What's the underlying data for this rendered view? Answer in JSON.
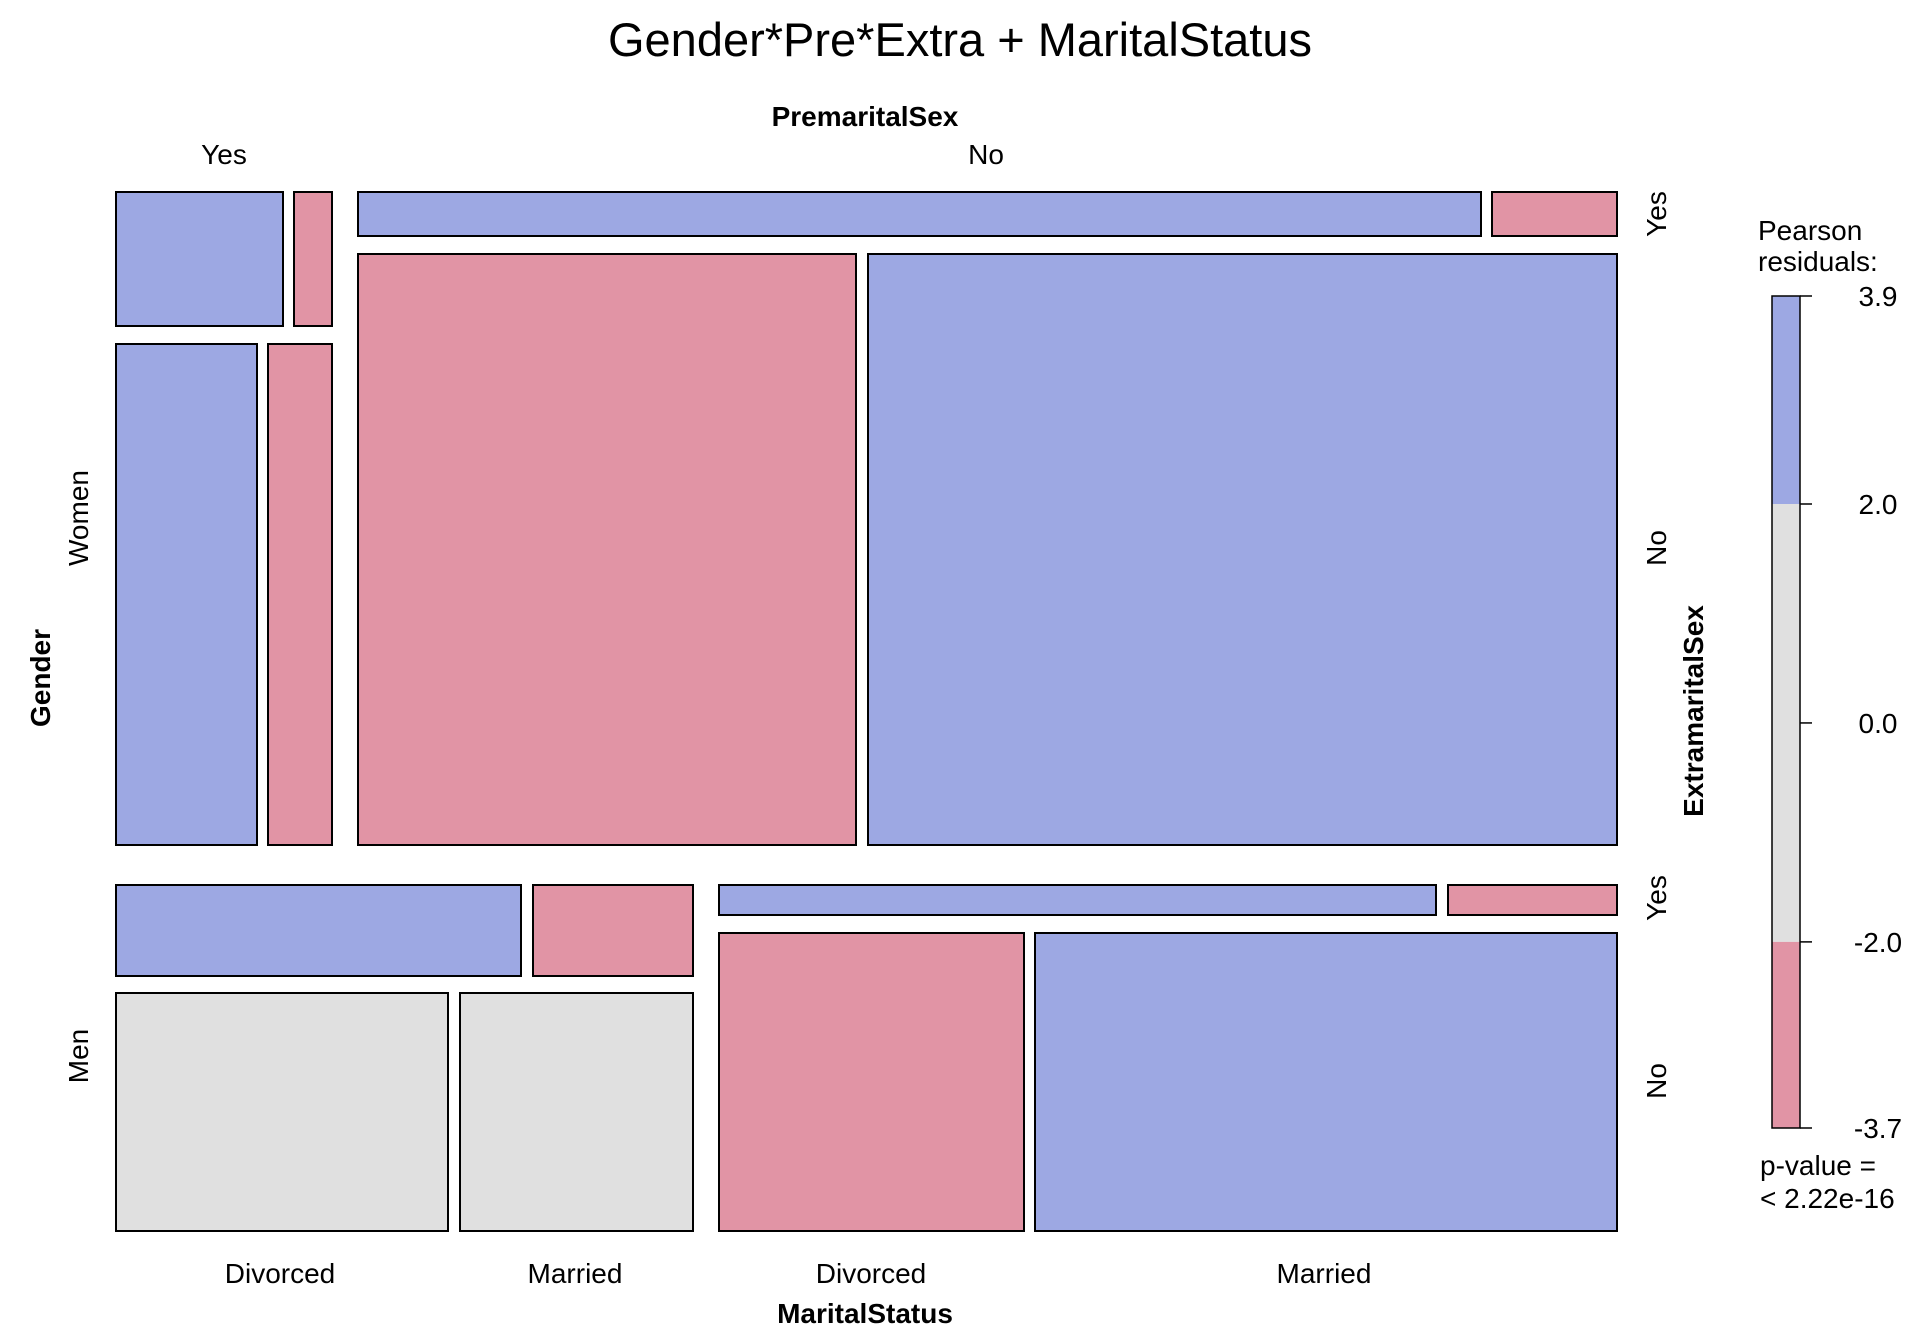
{
  "chart_data": {
    "type": "mosaic",
    "title": "Gender*Pre*Extra + MaritalStatus",
    "variables": {
      "top": "PremaritalSex",
      "left": "Gender",
      "right": "ExtramaritalSex",
      "bottom": "MaritalStatus"
    },
    "levels": {
      "PremaritalSex": [
        "Yes",
        "No"
      ],
      "Gender": [
        "Women",
        "Men"
      ],
      "ExtramaritalSex": [
        "Yes",
        "No"
      ],
      "MaritalStatus": [
        "Divorced",
        "Married"
      ]
    },
    "cells": [
      {
        "Gender": "Women",
        "PremaritalSex": "Yes",
        "ExtramaritalSex": "Yes",
        "MaritalStatus": "Divorced",
        "shade": "positive"
      },
      {
        "Gender": "Women",
        "PremaritalSex": "Yes",
        "ExtramaritalSex": "Yes",
        "MaritalStatus": "Married",
        "shade": "negative"
      },
      {
        "Gender": "Women",
        "PremaritalSex": "Yes",
        "ExtramaritalSex": "No",
        "MaritalStatus": "Divorced",
        "shade": "positive"
      },
      {
        "Gender": "Women",
        "PremaritalSex": "Yes",
        "ExtramaritalSex": "No",
        "MaritalStatus": "Married",
        "shade": "negative"
      },
      {
        "Gender": "Women",
        "PremaritalSex": "No",
        "ExtramaritalSex": "Yes",
        "MaritalStatus": "Divorced",
        "shade": "positive"
      },
      {
        "Gender": "Women",
        "PremaritalSex": "No",
        "ExtramaritalSex": "Yes",
        "MaritalStatus": "Married",
        "shade": "negative"
      },
      {
        "Gender": "Women",
        "PremaritalSex": "No",
        "ExtramaritalSex": "No",
        "MaritalStatus": "Divorced",
        "shade": "negative"
      },
      {
        "Gender": "Women",
        "PremaritalSex": "No",
        "ExtramaritalSex": "No",
        "MaritalStatus": "Married",
        "shade": "positive"
      },
      {
        "Gender": "Men",
        "PremaritalSex": "Yes",
        "ExtramaritalSex": "Yes",
        "MaritalStatus": "Divorced",
        "shade": "positive"
      },
      {
        "Gender": "Men",
        "PremaritalSex": "Yes",
        "ExtramaritalSex": "Yes",
        "MaritalStatus": "Married",
        "shade": "negative"
      },
      {
        "Gender": "Men",
        "PremaritalSex": "Yes",
        "ExtramaritalSex": "No",
        "MaritalStatus": "Divorced",
        "shade": "neutral"
      },
      {
        "Gender": "Men",
        "PremaritalSex": "Yes",
        "ExtramaritalSex": "No",
        "MaritalStatus": "Married",
        "shade": "neutral"
      },
      {
        "Gender": "Men",
        "PremaritalSex": "No",
        "ExtramaritalSex": "Yes",
        "MaritalStatus": "Divorced",
        "shade": "positive"
      },
      {
        "Gender": "Men",
        "PremaritalSex": "No",
        "ExtramaritalSex": "Yes",
        "MaritalStatus": "Married",
        "shade": "negative"
      },
      {
        "Gender": "Men",
        "PremaritalSex": "No",
        "ExtramaritalSex": "No",
        "MaritalStatus": "Divorced",
        "shade": "negative"
      },
      {
        "Gender": "Men",
        "PremaritalSex": "No",
        "ExtramaritalSex": "No",
        "MaritalStatus": "Married",
        "shade": "positive"
      }
    ],
    "legend": {
      "title_line1": "Pearson",
      "title_line2": "residuals:",
      "range": [
        -3.7,
        3.9
      ],
      "ticks": [
        "3.9",
        "2.0",
        "0.0",
        "-2.0",
        "-3.7"
      ],
      "tick_values": [
        3.9,
        2.0,
        0.0,
        -2.0,
        -3.7
      ],
      "bands": [
        {
          "from": 2.0,
          "to": 3.9,
          "shade": "positive"
        },
        {
          "from": -2.0,
          "to": 2.0,
          "shade": "neutral"
        },
        {
          "from": -3.7,
          "to": -2.0,
          "shade": "negative"
        }
      ],
      "pvalue_line1": "p-value =",
      "pvalue_line2": "< 2.22e-16"
    },
    "colors": {
      "positive": "#9da8e3",
      "neutral": "#e0e0e0",
      "negative": "#e194a5",
      "border": "#000000"
    }
  }
}
